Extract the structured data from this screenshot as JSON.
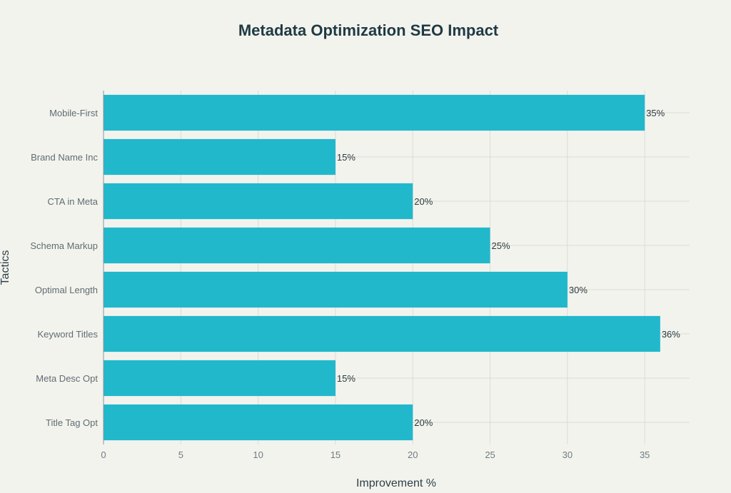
{
  "chart_data": {
    "type": "bar",
    "orientation": "horizontal",
    "title": "Metadata Optimization SEO Impact",
    "xlabel": "Improvement %",
    "ylabel": "Tactics",
    "categories": [
      "Title Tag Opt",
      "Meta Desc Opt",
      "Keyword Titles",
      "Optimal Length",
      "Schema Markup",
      "CTA in Meta",
      "Brand Name Inc",
      "Mobile-First"
    ],
    "values": [
      20,
      15,
      36,
      30,
      25,
      20,
      15,
      35
    ],
    "data_labels": [
      "20%",
      "15%",
      "36%",
      "30%",
      "25%",
      "20%",
      "15%",
      "35%"
    ],
    "xlim": [
      0,
      37.9
    ],
    "xticks": [
      0,
      5,
      10,
      15,
      20,
      25,
      30,
      35
    ],
    "xtick_labels": [
      "0",
      "5",
      "10",
      "15",
      "20",
      "25",
      "30",
      "35"
    ],
    "grid": true,
    "bar_color": "#21b8cc"
  }
}
